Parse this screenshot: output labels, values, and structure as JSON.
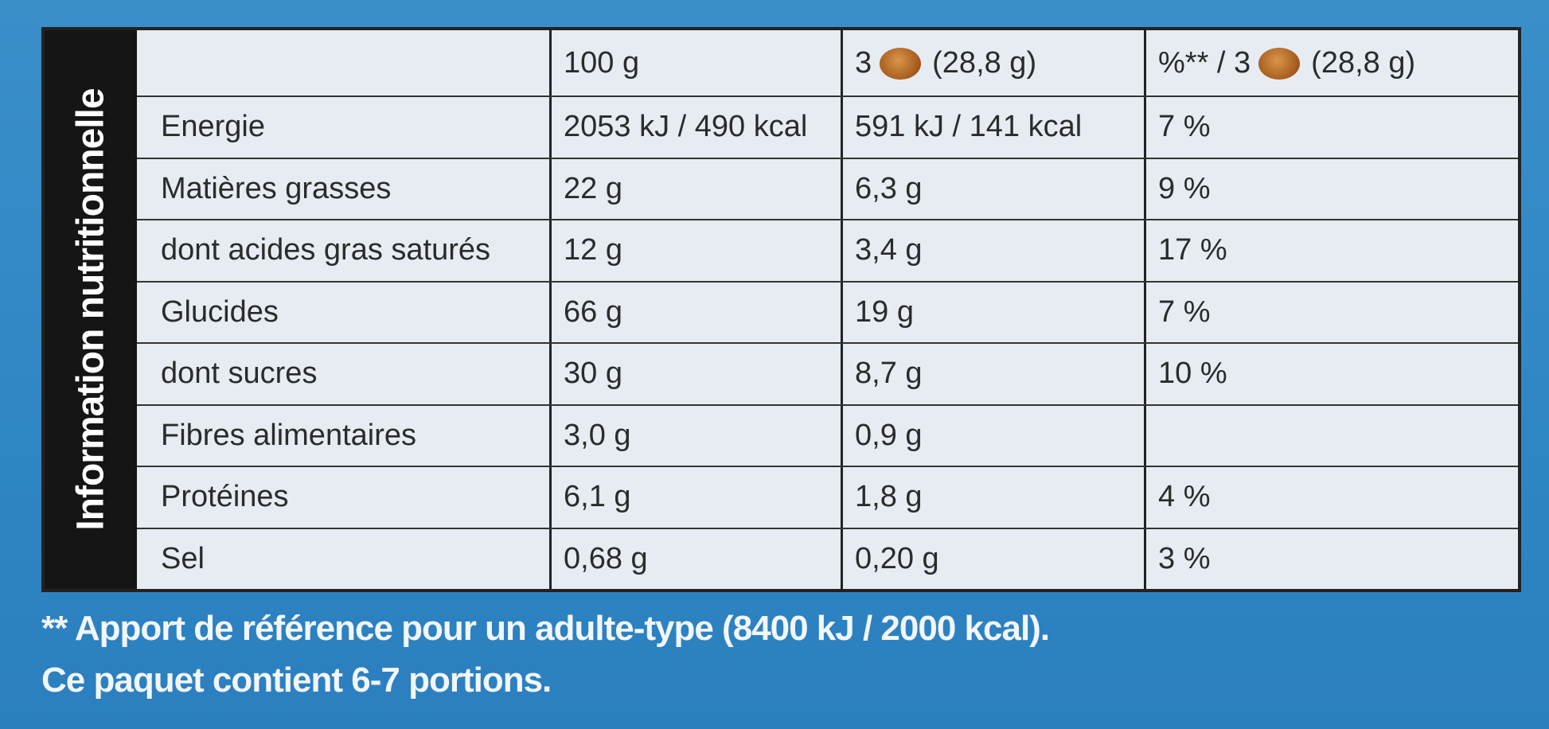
{
  "side_label": "Information nutritionnelle",
  "table": {
    "header": [
      "100 g",
      {
        "count": "3",
        "weight": "(28,8 g)"
      },
      {
        "prefix": "%** / 3",
        "weight": "(28,8 g)"
      }
    ],
    "rows": [
      [
        "Energie",
        "2053 kJ / 490 kcal",
        "591 kJ / 141 kcal",
        "7 %"
      ],
      [
        "Matières grasses",
        "22 g",
        "6,3 g",
        "9 %"
      ],
      [
        "dont acides gras saturés",
        "12 g",
        "3,4 g",
        "17 %"
      ],
      [
        "Glucides",
        "66 g",
        "19 g",
        "7 %"
      ],
      [
        "dont sucres",
        "30 g",
        "8,7 g",
        "10 %"
      ],
      [
        "Fibres alimentaires",
        "3,0 g",
        "0,9 g"
      ],
      [
        "Protéines",
        "6,1 g",
        "1,8 g",
        "4 %"
      ],
      [
        "Sel",
        "0,68 g",
        "0,20 g",
        "3 %"
      ]
    ]
  },
  "footnotes": [
    "** Apport de référence pour un adulte-type (8400 kJ / 2000 kcal).",
    "Ce paquet contient 6-7 portions."
  ]
}
